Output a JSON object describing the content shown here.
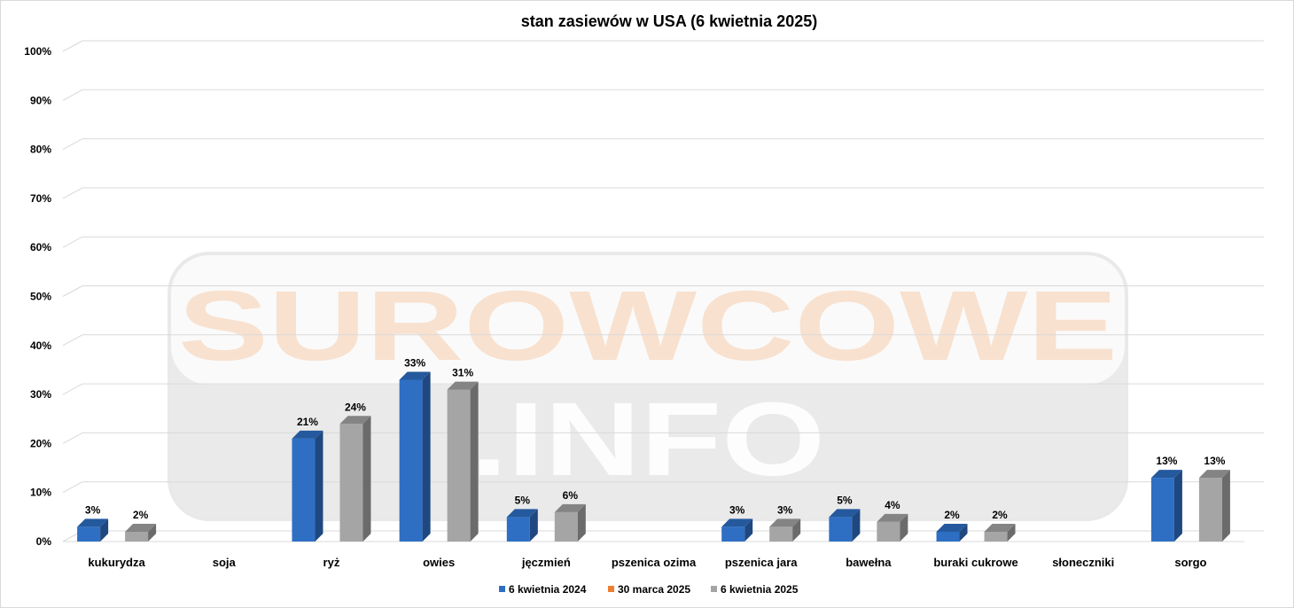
{
  "chart_data": {
    "type": "bar",
    "title": "stan zasiewów w USA (6 kwietnia 2025)",
    "categories": [
      "kukurydza",
      "soja",
      "ryż",
      "owies",
      "jęczmień",
      "pszenica ozima",
      "pszenica jara",
      "bawełna",
      "buraki cukrowe",
      "słoneczniki",
      "sorgo"
    ],
    "series": [
      {
        "name": "6 kwietnia 2024",
        "color": "#2e6fc4",
        "values": [
          3,
          null,
          21,
          33,
          5,
          null,
          3,
          5,
          2,
          null,
          13
        ]
      },
      {
        "name": "30 marca 2025",
        "color": "#ed7d31",
        "values": [
          null,
          null,
          null,
          null,
          null,
          null,
          null,
          null,
          null,
          null,
          null
        ]
      },
      {
        "name": "6 kwietnia 2025",
        "color": "#a5a5a5",
        "values": [
          2,
          null,
          24,
          31,
          6,
          null,
          3,
          4,
          2,
          null,
          13
        ]
      }
    ],
    "ylim": [
      0,
      100
    ],
    "yticks": [
      "0%",
      "10%",
      "20%",
      "30%",
      "40%",
      "50%",
      "60%",
      "70%",
      "80%",
      "90%",
      "100%"
    ],
    "data_label_suffix": "%",
    "grid": true,
    "legend_position": "bottom",
    "style": "3d-clustered-column"
  },
  "watermark": {
    "line1": "SUROWCOWE",
    "line2": ".INFO"
  }
}
